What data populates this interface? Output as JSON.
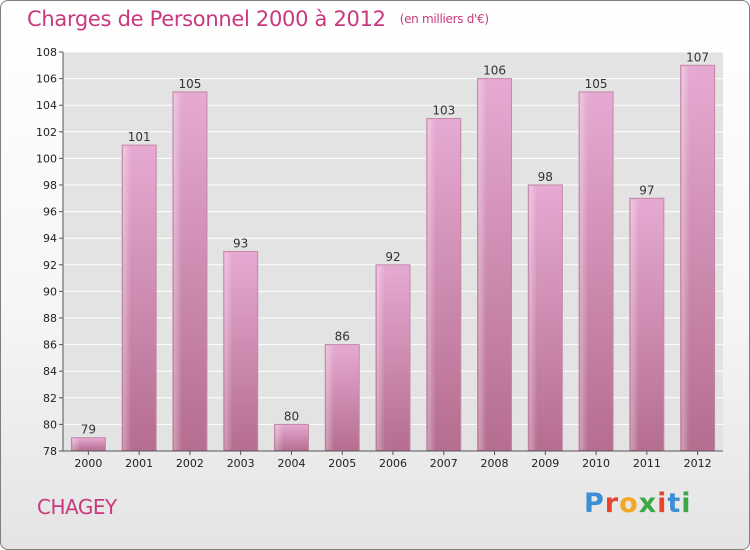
{
  "title": "Charges de Personnel 2000 à 2012",
  "subtitle": "(en milliers d'€)",
  "commune": "CHAGEY",
  "logo": {
    "letters": [
      "P",
      "r",
      "o",
      "x",
      "i",
      "t",
      "i"
    ],
    "colors": [
      "#3a8fd6",
      "#e8452c",
      "#f5a623",
      "#3da843",
      "#e8452c",
      "#3a8fd6",
      "#3da843"
    ]
  },
  "colors": {
    "title": "#c8397e",
    "bar_light": "#e4a6cd",
    "bar_dark": "#b9708f"
  },
  "chart_data": {
    "type": "bar",
    "categories": [
      "2000",
      "2001",
      "2002",
      "2003",
      "2004",
      "2005",
      "2006",
      "2007",
      "2008",
      "2009",
      "2010",
      "2011",
      "2012"
    ],
    "values": [
      79,
      101,
      105,
      93,
      80,
      86,
      92,
      103,
      106,
      98,
      105,
      97,
      107
    ],
    "ylim": [
      78,
      108
    ],
    "yticks": [
      78,
      80,
      82,
      84,
      86,
      88,
      90,
      92,
      94,
      96,
      98,
      100,
      102,
      104,
      106,
      108
    ],
    "grid": true,
    "data_labels": true
  }
}
